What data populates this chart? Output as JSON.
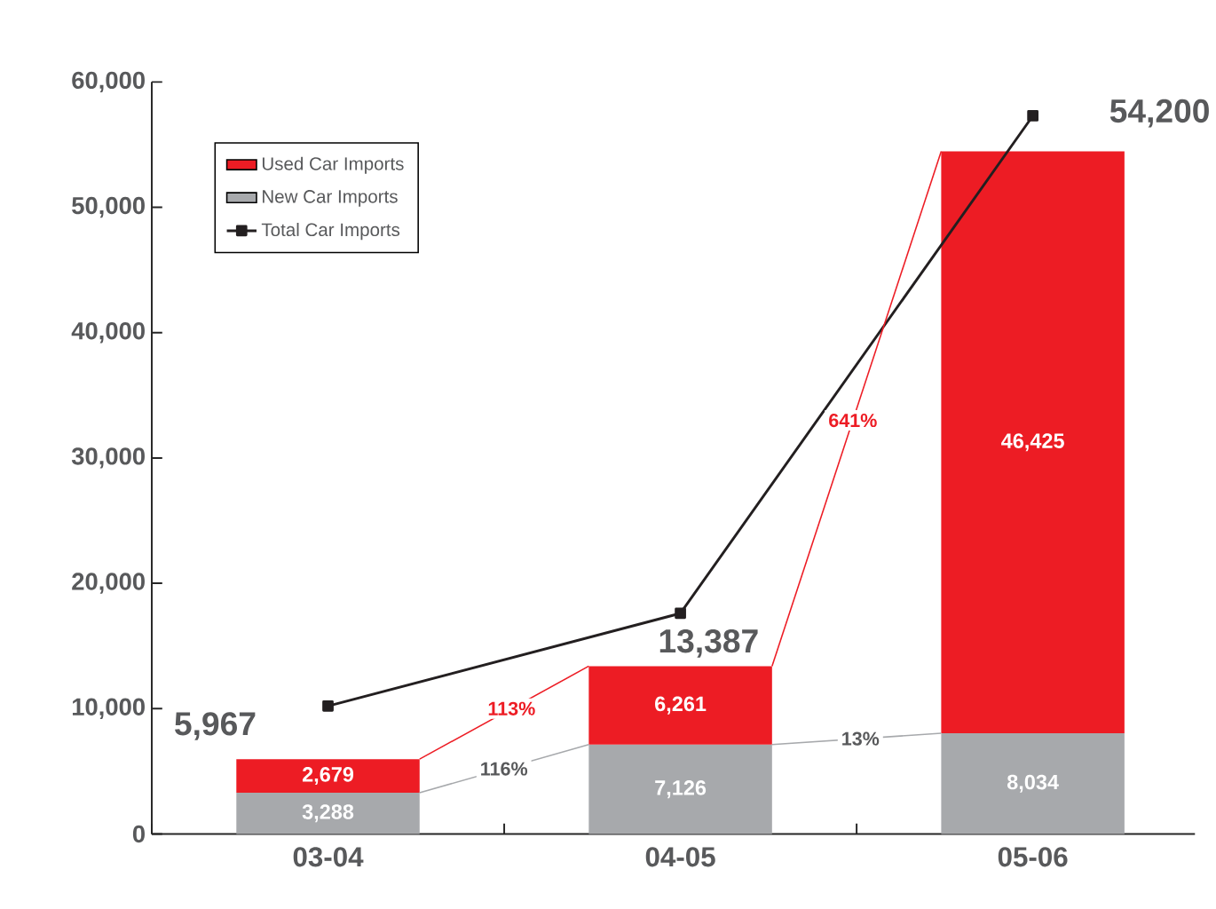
{
  "chart_data": {
    "type": "bar",
    "stacked": true,
    "categories": [
      "03-04",
      "04-05",
      "05-06"
    ],
    "series": [
      {
        "name": "New Car Imports",
        "color": "#a7a9ac",
        "values": [
          3288,
          7126,
          8034
        ],
        "value_labels": [
          "3,288",
          "7,126",
          "8,034"
        ]
      },
      {
        "name": "Used Car Imports",
        "color": "#ed1c24",
        "values": [
          2679,
          6261,
          46425
        ],
        "value_labels": [
          "2,679",
          "6,261",
          "46,425"
        ]
      },
      {
        "name": "Total Car Imports",
        "type": "line",
        "color": "#231f20",
        "marker": "square",
        "values": [
          10200,
          17600,
          57300
        ]
      }
    ],
    "ylim": [
      0,
      60000
    ],
    "yticks": [
      {
        "value": 0,
        "label": "0"
      },
      {
        "value": 10000,
        "label": "10,000"
      },
      {
        "value": 20000,
        "label": "20,000"
      },
      {
        "value": 30000,
        "label": "30,000"
      },
      {
        "value": 40000,
        "label": "40,000"
      },
      {
        "value": 50000,
        "label": "50,000"
      },
      {
        "value": 60000,
        "label": "60,000"
      }
    ],
    "legend": "top left",
    "grid": false,
    "annotations": [
      "5,967",
      "13,387",
      "54,200",
      {
        "text": "116%",
        "y": 5200
      },
      {
        "text": "13%",
        "y": 7600
      },
      {
        "text": "113%",
        "y": 10000
      },
      {
        "text": "641%",
        "y": 33000
      }
    ]
  }
}
